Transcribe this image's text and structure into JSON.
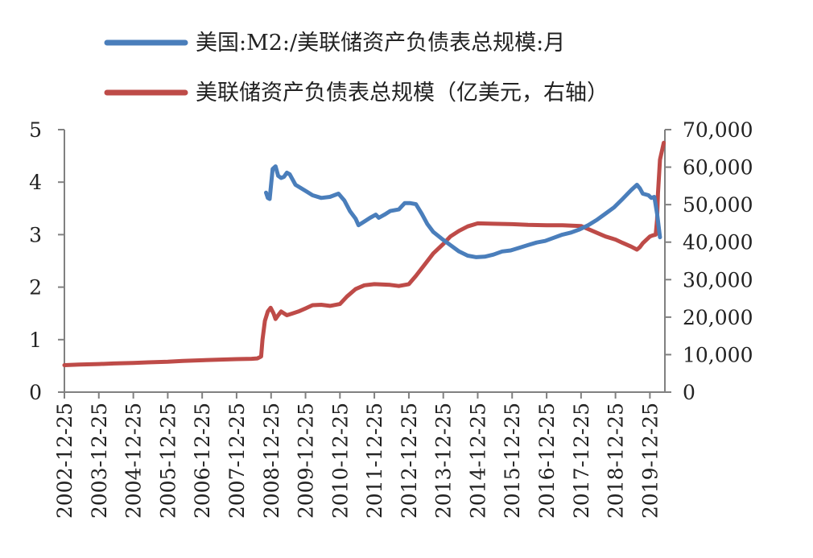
{
  "chart_data": {
    "type": "line",
    "title": "",
    "legend": {
      "placement": "top",
      "entries": [
        {
          "label": "美国:M2:/美联储资产负债表总规模:月",
          "color": "#4a7ebb"
        },
        {
          "label": "美联储资产负债表总规模（亿美元，右轴）",
          "color": "#be4b48"
        }
      ]
    },
    "x_axis": {
      "tick_labels": [
        "2002-12-25",
        "2003-12-25",
        "2004-12-25",
        "2005-12-25",
        "2006-12-25",
        "2007-12-25",
        "2008-12-25",
        "2009-12-25",
        "2010-12-25",
        "2011-12-25",
        "2012-12-25",
        "2013-12-25",
        "2014-12-25",
        "2015-12-25",
        "2016-12-25",
        "2017-12-25",
        "2018-12-25",
        "2019-12-25"
      ],
      "range": [
        "2002-12-25",
        "2020-06-01"
      ]
    },
    "y_left": {
      "range": [
        0,
        5
      ],
      "tick_labels": [
        "0",
        "1",
        "2",
        "3",
        "4",
        "5"
      ]
    },
    "y_right": {
      "range": [
        0,
        70000
      ],
      "tick_labels": [
        "0",
        "10,000",
        "20,000",
        "30,000",
        "40,000",
        "50,000",
        "60,000",
        "70,000"
      ]
    },
    "grid": false,
    "series": [
      {
        "name": "美国:M2:/美联储资产负债表总规模:月",
        "axis": "left",
        "color": "#4a7ebb",
        "points": [
          [
            "2008-11-01",
            3.8
          ],
          [
            "2008-11-20",
            3.7
          ],
          [
            "2008-12-10",
            3.68
          ],
          [
            "2009-01-10",
            4.25
          ],
          [
            "2009-02-10",
            4.3
          ],
          [
            "2009-03-10",
            4.12
          ],
          [
            "2009-04-10",
            4.08
          ],
          [
            "2009-05-10",
            4.1
          ],
          [
            "2009-06-10",
            4.18
          ],
          [
            "2009-07-10",
            4.15
          ],
          [
            "2009-09-10",
            3.95
          ],
          [
            "2009-12-10",
            3.85
          ],
          [
            "2010-03-10",
            3.75
          ],
          [
            "2010-06-10",
            3.7
          ],
          [
            "2010-09-10",
            3.72
          ],
          [
            "2010-12-10",
            3.78
          ],
          [
            "2011-02-10",
            3.65
          ],
          [
            "2011-04-10",
            3.45
          ],
          [
            "2011-06-10",
            3.3
          ],
          [
            "2011-07-10",
            3.18
          ],
          [
            "2011-09-10",
            3.25
          ],
          [
            "2011-11-10",
            3.32
          ],
          [
            "2012-01-10",
            3.38
          ],
          [
            "2012-02-10",
            3.32
          ],
          [
            "2012-04-10",
            3.38
          ],
          [
            "2012-06-10",
            3.45
          ],
          [
            "2012-09-10",
            3.48
          ],
          [
            "2012-11-10",
            3.6
          ],
          [
            "2013-01-10",
            3.6
          ],
          [
            "2013-03-10",
            3.58
          ],
          [
            "2013-05-10",
            3.4
          ],
          [
            "2013-07-10",
            3.2
          ],
          [
            "2013-09-10",
            3.05
          ],
          [
            "2013-12-10",
            2.92
          ],
          [
            "2014-03-10",
            2.8
          ],
          [
            "2014-06-10",
            2.68
          ],
          [
            "2014-09-10",
            2.6
          ],
          [
            "2014-12-10",
            2.57
          ],
          [
            "2015-03-10",
            2.58
          ],
          [
            "2015-06-10",
            2.62
          ],
          [
            "2015-09-10",
            2.68
          ],
          [
            "2015-12-10",
            2.7
          ],
          [
            "2016-03-10",
            2.75
          ],
          [
            "2016-06-10",
            2.8
          ],
          [
            "2016-09-10",
            2.85
          ],
          [
            "2016-12-10",
            2.88
          ],
          [
            "2017-03-10",
            2.94
          ],
          [
            "2017-06-10",
            3.0
          ],
          [
            "2017-09-10",
            3.04
          ],
          [
            "2017-12-10",
            3.1
          ],
          [
            "2018-03-10",
            3.18
          ],
          [
            "2018-06-10",
            3.28
          ],
          [
            "2018-09-10",
            3.4
          ],
          [
            "2018-12-10",
            3.52
          ],
          [
            "2019-03-10",
            3.68
          ],
          [
            "2019-06-10",
            3.85
          ],
          [
            "2019-08-10",
            3.95
          ],
          [
            "2019-09-10",
            3.88
          ],
          [
            "2019-10-10",
            3.78
          ],
          [
            "2019-12-10",
            3.75
          ],
          [
            "2020-01-10",
            3.7
          ],
          [
            "2020-02-10",
            3.72
          ],
          [
            "2020-03-10",
            3.4
          ],
          [
            "2020-04-10",
            2.95
          ]
        ]
      },
      {
        "name": "美联储资产负债表总规模",
        "axis": "right",
        "color": "#be4b48",
        "points": [
          [
            "2002-12-25",
            7200
          ],
          [
            "2003-06-01",
            7350
          ],
          [
            "2003-12-25",
            7500
          ],
          [
            "2004-06-01",
            7650
          ],
          [
            "2004-12-25",
            7800
          ],
          [
            "2005-06-01",
            7950
          ],
          [
            "2005-12-25",
            8100
          ],
          [
            "2006-06-01",
            8300
          ],
          [
            "2006-12-25",
            8500
          ],
          [
            "2007-06-01",
            8650
          ],
          [
            "2007-12-25",
            8800
          ],
          [
            "2008-06-01",
            8900
          ],
          [
            "2008-08-01",
            9000
          ],
          [
            "2008-09-10",
            9500
          ],
          [
            "2008-09-25",
            14000
          ],
          [
            "2008-10-20",
            19000
          ],
          [
            "2008-11-20",
            21500
          ],
          [
            "2008-12-20",
            22500
          ],
          [
            "2009-01-20",
            21000
          ],
          [
            "2009-02-10",
            19500
          ],
          [
            "2009-03-10",
            20500
          ],
          [
            "2009-04-10",
            21500
          ],
          [
            "2009-06-10",
            20500
          ],
          [
            "2009-08-10",
            21000
          ],
          [
            "2009-10-10",
            21500
          ],
          [
            "2009-12-25",
            22300
          ],
          [
            "2010-03-10",
            23200
          ],
          [
            "2010-06-10",
            23300
          ],
          [
            "2010-09-10",
            23000
          ],
          [
            "2010-12-25",
            23500
          ],
          [
            "2011-03-10",
            25500
          ],
          [
            "2011-06-10",
            27500
          ],
          [
            "2011-09-10",
            28500
          ],
          [
            "2011-12-25",
            28800
          ],
          [
            "2012-03-10",
            28700
          ],
          [
            "2012-06-10",
            28600
          ],
          [
            "2012-09-10",
            28300
          ],
          [
            "2012-12-25",
            28800
          ],
          [
            "2013-03-10",
            31000
          ],
          [
            "2013-06-10",
            34000
          ],
          [
            "2013-09-10",
            37000
          ],
          [
            "2013-12-25",
            39500
          ],
          [
            "2014-03-10",
            41500
          ],
          [
            "2014-06-10",
            43000
          ],
          [
            "2014-09-10",
            44200
          ],
          [
            "2014-12-25",
            45000
          ],
          [
            "2015-06-10",
            44900
          ],
          [
            "2015-12-25",
            44800
          ],
          [
            "2016-06-10",
            44600
          ],
          [
            "2016-12-25",
            44500
          ],
          [
            "2017-06-10",
            44500
          ],
          [
            "2017-12-25",
            44300
          ],
          [
            "2018-03-10",
            43500
          ],
          [
            "2018-06-10",
            42500
          ],
          [
            "2018-09-10",
            41500
          ],
          [
            "2018-12-25",
            40700
          ],
          [
            "2019-03-10",
            39800
          ],
          [
            "2019-06-10",
            38800
          ],
          [
            "2019-08-10",
            38000
          ],
          [
            "2019-09-10",
            38700
          ],
          [
            "2019-10-10",
            39700
          ],
          [
            "2019-12-25",
            41500
          ],
          [
            "2020-01-25",
            41800
          ],
          [
            "2020-02-25",
            42000
          ],
          [
            "2020-03-10",
            46000
          ],
          [
            "2020-03-20",
            53000
          ],
          [
            "2020-04-10",
            62000
          ],
          [
            "2020-05-20",
            66500
          ]
        ]
      }
    ]
  }
}
